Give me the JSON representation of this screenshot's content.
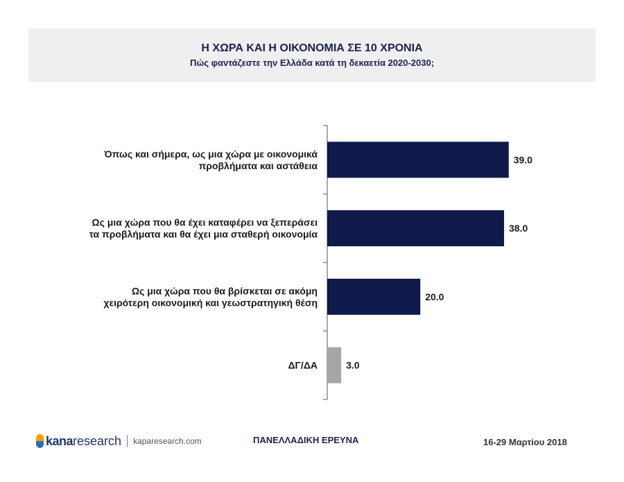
{
  "header": {
    "title": "Η ΧΩΡΑ ΚΑΙ Η ΟΙΚΟΝΟΜΙΑ ΣΕ 10 ΧΡΟΝΙΑ",
    "subtitle": "Πώς φαντάζεστε την Ελλάδα κατά τη δεκαετία 2020-2030;"
  },
  "chart_data": {
    "type": "bar",
    "orientation": "horizontal",
    "categories": [
      [
        "Όπως και σήμερα, ως μια χώρα με οικονομικά",
        "προβλήματα και αστάθεια"
      ],
      [
        "Ως μια χώρα που θα έχει καταφέρει να ξεπεράσει",
        "τα προβλήματα και θα έχει μια σταθερή οικονομία"
      ],
      [
        "Ως μια χώρα που θα βρίσκεται σε ακόμη",
        "χειρότερη οικονομική και γεωστρατηγική θέση"
      ],
      [
        "ΔΓ/ΔΑ"
      ]
    ],
    "values": [
      39.0,
      38.0,
      20.0,
      3.0
    ],
    "value_labels": [
      "39.0",
      "38.0",
      "20.0",
      "3.0"
    ],
    "colors": [
      "#0f1a4a",
      "#0f1a4a",
      "#0f1a4a",
      "#a6a6a6"
    ],
    "xlim": [
      0,
      45
    ],
    "grid": false,
    "title": "Η ΧΩΡΑ ΚΑΙ Η ΟΙΚΟΝΟΜΙΑ ΣΕ 10 ΧΡΟΝΙΑ",
    "subtitle": "Πώς φαντάζεστε την Ελλάδα κατά τη δεκαετία 2020-2030;"
  },
  "footer": {
    "logo_kana": "kana",
    "logo_research": "research",
    "logo_url": "kaparesearch.com",
    "survey_label": "ΠΑΝΕΛΛΑΔΙΚΗ ΕΡΕΥΝΑ",
    "date": "16-29 Μαρτίου 2018"
  }
}
